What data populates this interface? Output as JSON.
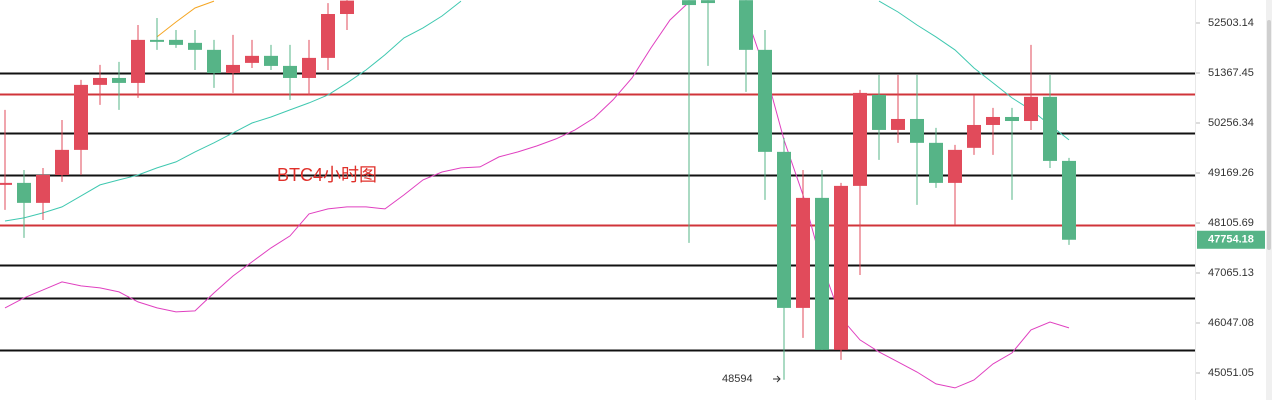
{
  "chart_data": {
    "type": "candlestick",
    "title": "BTC4小时图",
    "categories": [
      null,
      null,
      null,
      null,
      null,
      null,
      null,
      null,
      null,
      null,
      null,
      null,
      null,
      null,
      null,
      null,
      null,
      null,
      null,
      null,
      null,
      null,
      null,
      null,
      null,
      null,
      null,
      null,
      null,
      null,
      null,
      null,
      null,
      null,
      null,
      null,
      null,
      null,
      null,
      null,
      null,
      null,
      null,
      null,
      null,
      null,
      null,
      null,
      null,
      null,
      null,
      null,
      null,
      null,
      null,
      null,
      null
    ],
    "candles": [
      {
        "open": 48914,
        "high": 50545,
        "low": 48382,
        "close": 48957
      },
      {
        "open": 48957,
        "high": 49234,
        "low": 47793,
        "close": 48531
      },
      {
        "open": 48531,
        "high": 49278,
        "low": 48169,
        "close": 49127
      },
      {
        "open": 49127,
        "high": 50323,
        "low": 48978,
        "close": 49669
      },
      {
        "open": 49669,
        "high": 51212,
        "low": 49127,
        "close": 51101
      },
      {
        "open": 51101,
        "high": 51549,
        "low": 50656,
        "close": 51256
      },
      {
        "open": 51256,
        "high": 51617,
        "low": 50545,
        "close": 51145
      },
      {
        "open": 51145,
        "high": 52458,
        "low": 50811,
        "close": 52117
      },
      {
        "open": 52117,
        "high": 52618,
        "low": 51890,
        "close": 52072
      },
      {
        "open": 52117,
        "high": 52344,
        "low": 51935,
        "close": 52003
      },
      {
        "open": 52049,
        "high": 52344,
        "low": 51436,
        "close": 51890
      },
      {
        "open": 51890,
        "high": 52117,
        "low": 51034,
        "close": 51367
      },
      {
        "open": 51367,
        "high": 52231,
        "low": 50922,
        "close": 51549
      },
      {
        "open": 51595,
        "high": 52117,
        "low": 51481,
        "close": 51754
      },
      {
        "open": 51754,
        "high": 52003,
        "low": 51436,
        "close": 51527
      },
      {
        "open": 51527,
        "high": 52003,
        "low": 50767,
        "close": 51256
      },
      {
        "open": 51256,
        "high": 52117,
        "low": 50878,
        "close": 51708
      },
      {
        "open": 51708,
        "high": 52963,
        "low": 51436,
        "close": 52710
      },
      {
        "open": 52710,
        "high": 53030,
        "low": 52344,
        "close": 53020
      },
      null,
      null,
      null,
      null,
      null,
      null,
      null,
      null,
      null,
      null,
      null,
      null,
      null,
      null,
      null,
      null,
      null,
      {
        "open": 53030,
        "high": 53030,
        "low": 47689,
        "close": 52917
      },
      {
        "open": 53030,
        "high": 53030,
        "low": 51527,
        "close": 52963
      },
      null,
      {
        "open": 53030,
        "high": 53030,
        "low": 50945,
        "close": 51890
      },
      {
        "open": 51890,
        "high": 52344,
        "low": 48594,
        "close": 49626
      },
      {
        "open": 49626,
        "high": 49930,
        "low": 44918.29,
        "close": 46352
      },
      {
        "open": 46352,
        "high": 49234,
        "low": 45748,
        "close": 48637
      },
      {
        "open": 48637,
        "high": 49234,
        "low": 45509,
        "close": 45509
      },
      {
        "open": 45509,
        "high": 48957,
        "low": 45310,
        "close": 48893
      },
      {
        "open": 48893,
        "high": 50990,
        "low": 47024,
        "close": 50922
      },
      {
        "open": 50878,
        "high": 51323,
        "low": 49452,
        "close": 50104
      },
      {
        "open": 50104,
        "high": 51323,
        "low": 49822,
        "close": 50345
      },
      {
        "open": 50345,
        "high": 51323,
        "low": 48488,
        "close": 49822
      },
      {
        "open": 49822,
        "high": 50148,
        "low": 48850,
        "close": 48957
      },
      {
        "open": 48957,
        "high": 49778,
        "low": 48064,
        "close": 49669
      },
      {
        "open": 49713,
        "high": 50878,
        "low": 49561,
        "close": 50213
      },
      {
        "open": 50213,
        "high": 50589,
        "low": 49561,
        "close": 50389
      },
      {
        "open": 50389,
        "high": 50589,
        "low": 48594,
        "close": 50300
      },
      {
        "open": 50300,
        "high": 52003,
        "low": 50104,
        "close": 50834
      },
      {
        "open": 50834,
        "high": 51323,
        "low": 49278,
        "close": 49430
      },
      {
        "open": 49430,
        "high": 49495,
        "low": 47648,
        "close": 47754.18
      }
    ],
    "colors": {
      "up": "#e14b5b",
      "down": "#56b487"
    },
    "series": [
      {
        "color": "#f5a623",
        "values": [
          null,
          null,
          null,
          null,
          null,
          null,
          null,
          null,
          52185,
          52526,
          52848,
          53009,
          null,
          null,
          null,
          null,
          null,
          null,
          null,
          null,
          null,
          null,
          null,
          null,
          null,
          null,
          null,
          null,
          null,
          null,
          null,
          null,
          null,
          null,
          null,
          null,
          null,
          null,
          null,
          null,
          null,
          null,
          null,
          null,
          null,
          null,
          null,
          null,
          null,
          null,
          null,
          null,
          null,
          null,
          null,
          null,
          null
        ]
      },
      {
        "color": "#3fc8b0",
        "values": [
          48148,
          48212,
          48318,
          48446,
          48680,
          48914,
          49020,
          49127,
          49278,
          49408,
          49626,
          49822,
          50039,
          50256,
          50389,
          50545,
          50700,
          50878,
          51145,
          51436,
          51777,
          52162,
          52390,
          52664,
          53009,
          null,
          null,
          null,
          null,
          null,
          null,
          null,
          null,
          null,
          null,
          null,
          null,
          null,
          null,
          null,
          null,
          null,
          null,
          null,
          null,
          null,
          53009,
          52756,
          52458,
          52185,
          51890,
          51481,
          51145,
          50811,
          50545,
          50213,
          49887
        ]
      },
      {
        "color": "#e040c0",
        "values": [
          46352,
          46556,
          46719,
          46882,
          46800,
          46760,
          46678,
          46474,
          46352,
          46271,
          46291,
          46658,
          47004,
          47294,
          47585,
          47835,
          48297,
          48403,
          48446,
          48446,
          48403,
          48701,
          49020,
          49191,
          49278,
          49300,
          49517,
          49626,
          49756,
          49909,
          50104,
          50367,
          50767,
          51256,
          51935,
          52572,
          52986,
          null,
          null,
          52687,
          51436,
          49887,
          48701,
          47232,
          46149,
          45708,
          45469,
          45270,
          45071,
          44836,
          44758,
          44914,
          45230,
          45449,
          45908,
          46067,
          45948
        ]
      }
    ],
    "levels": [
      {
        "value": 51367,
        "color": "#111111"
      },
      {
        "value": 50900,
        "color": "#d0343a"
      },
      {
        "value": 50039,
        "color": "#111111"
      },
      {
        "value": 49127,
        "color": "#111111"
      },
      {
        "value": 48064,
        "color": "#d0343a"
      },
      {
        "value": 47232,
        "color": "#111111"
      },
      {
        "value": 46556,
        "color": "#111111"
      },
      {
        "value": 45509,
        "color": "#111111"
      }
    ],
    "ylim": [
      44522,
      53034
    ],
    "yticks": [
      45051.05,
      46047.08,
      47065.13,
      48105.69,
      49169.26,
      50256.34,
      51367.45,
      52503.14
    ],
    "log_scale": true,
    "title_color": "#e0302a"
  }
}
